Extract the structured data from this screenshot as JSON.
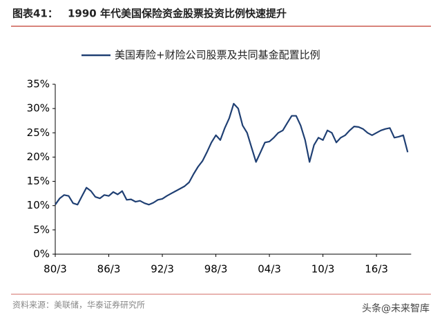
{
  "header": {
    "label": "图表41：",
    "title": "1990 年代美国保险资金股票投资比例快速提升"
  },
  "chart_data": {
    "type": "line",
    "categories": [
      "80/3",
      null,
      null,
      null,
      null,
      null,
      null,
      null,
      null,
      null,
      null,
      null,
      "86/3",
      null,
      null,
      null,
      null,
      null,
      null,
      null,
      null,
      null,
      null,
      null,
      "92/3",
      null,
      null,
      null,
      null,
      null,
      null,
      null,
      null,
      null,
      null,
      null,
      "98/3",
      null,
      null,
      null,
      null,
      null,
      null,
      null,
      null,
      null,
      null,
      null,
      "04/3",
      null,
      null,
      null,
      null,
      null,
      null,
      null,
      null,
      null,
      null,
      null,
      "10/3",
      null,
      null,
      null,
      null,
      null,
      null,
      null,
      null,
      null,
      null,
      null,
      "16/3",
      null,
      null,
      null,
      null,
      null,
      null,
      null
    ],
    "series": [
      {
        "name": "美国寿险+财险公司股票及共同基金配置比例",
        "color": "#1f3f73",
        "values": [
          10.2,
          11.5,
          12.2,
          12,
          10.5,
          10.2,
          12,
          13.7,
          13,
          11.8,
          11.5,
          12.2,
          12,
          12.8,
          12.3,
          13,
          11.2,
          11.3,
          10.8,
          11,
          10.5,
          10.2,
          10.6,
          11.2,
          11.4,
          12,
          12.5,
          13,
          13.5,
          14,
          14.8,
          16.5,
          18,
          19.2,
          21,
          23,
          24.5,
          23.5,
          26,
          28,
          31,
          30,
          26.5,
          25,
          22,
          19,
          21,
          23,
          23.2,
          24,
          25,
          25.5,
          27,
          28.5,
          28.5,
          26.5,
          23.5,
          19,
          22.5,
          24,
          23.5,
          25.5,
          25,
          23,
          24,
          24.5,
          25.5,
          26.3,
          26.2,
          25.8,
          25,
          24.5,
          25,
          25.5,
          25.8,
          26,
          24,
          24.2,
          24.5,
          21
        ]
      }
    ],
    "ylim": [
      0,
      35
    ],
    "yticks": [
      {
        "value": 0,
        "label": "0%"
      },
      {
        "value": 5,
        "label": "5%"
      },
      {
        "value": 10,
        "label": "10%"
      },
      {
        "value": 15,
        "label": "15%"
      },
      {
        "value": 20,
        "label": "20%"
      },
      {
        "value": 25,
        "label": "25%"
      },
      {
        "value": 30,
        "label": "30%"
      },
      {
        "value": 35,
        "label": "35%"
      }
    ],
    "legend": "top"
  },
  "footer": {
    "source": "资料来源：美联储，华泰证券研究所",
    "watermark": "头条@未来智库"
  }
}
